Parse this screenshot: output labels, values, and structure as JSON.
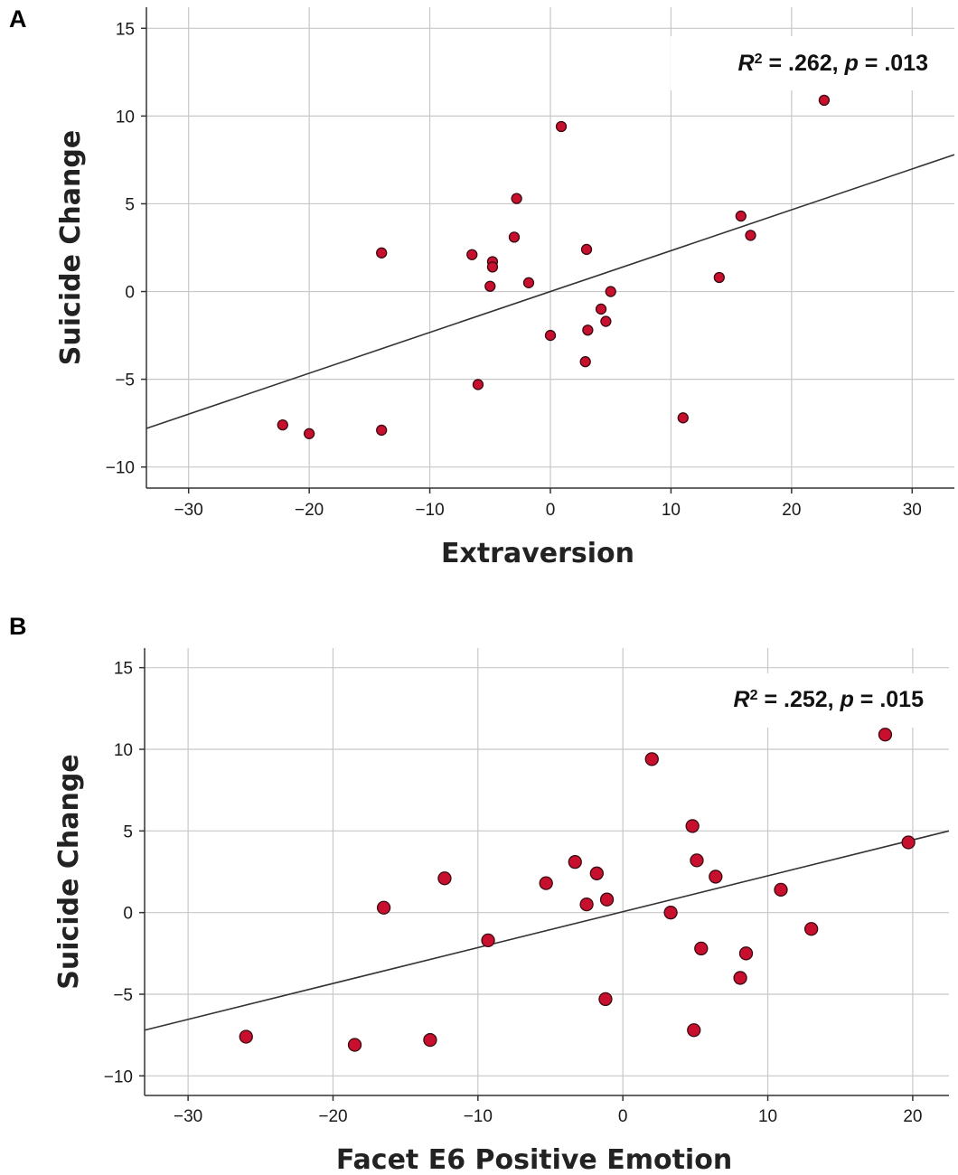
{
  "chart_data": [
    {
      "panel": "A",
      "type": "scatter",
      "title": "",
      "xlabel": "Extraversion",
      "ylabel": "Suicide Change",
      "xlim": [
        -33.5,
        33.5
      ],
      "ylim": [
        -11.2,
        16.2
      ],
      "xticks": [
        -30,
        -20,
        -10,
        0,
        10,
        20,
        30
      ],
      "yticks": [
        15,
        10,
        5,
        0,
        -5,
        -10
      ],
      "grid": true,
      "annotation": {
        "r_label": "R",
        "sup": "2",
        "mid": " = .262, ",
        "p_label": "p",
        "end": " = .013"
      },
      "fit_line": {
        "x1": -33.5,
        "y1": -7.8,
        "x2": 33.5,
        "y2": 7.8
      },
      "points": [
        {
          "x": -22.2,
          "y": -7.6
        },
        {
          "x": -20.0,
          "y": -8.1
        },
        {
          "x": -14.0,
          "y": 2.2
        },
        {
          "x": -14.0,
          "y": -7.9
        },
        {
          "x": -6.5,
          "y": 2.1
        },
        {
          "x": -6.0,
          "y": -5.3
        },
        {
          "x": -4.8,
          "y": 1.7
        },
        {
          "x": -4.8,
          "y": 1.4
        },
        {
          "x": -5.0,
          "y": 0.3
        },
        {
          "x": -3.0,
          "y": 3.1
        },
        {
          "x": -2.8,
          "y": 5.3
        },
        {
          "x": -1.8,
          "y": 0.5
        },
        {
          "x": 0.0,
          "y": -2.5
        },
        {
          "x": 0.9,
          "y": 9.4
        },
        {
          "x": 3.0,
          "y": 2.4
        },
        {
          "x": 3.1,
          "y": -2.2
        },
        {
          "x": 2.9,
          "y": -4.0
        },
        {
          "x": 4.2,
          "y": -1.0
        },
        {
          "x": 4.6,
          "y": -1.7
        },
        {
          "x": 5.0,
          "y": 0.0
        },
        {
          "x": 11.0,
          "y": -7.2
        },
        {
          "x": 14.0,
          "y": 0.8
        },
        {
          "x": 15.8,
          "y": 4.3
        },
        {
          "x": 16.6,
          "y": 3.2
        },
        {
          "x": 22.7,
          "y": 10.9
        }
      ]
    },
    {
      "panel": "B",
      "type": "scatter",
      "title": "",
      "xlabel": "Facet E6 Positive Emotion",
      "ylabel": "Suicide Change",
      "xlim": [
        -33.0,
        22.5
      ],
      "ylim": [
        -11.2,
        16.2
      ],
      "xticks": [
        -30,
        -20,
        -10,
        0,
        10,
        20
      ],
      "yticks": [
        15,
        10,
        5,
        0,
        -5,
        -10
      ],
      "grid": true,
      "annotation": {
        "r_label": "R",
        "sup": "2",
        "mid": " = .252, ",
        "p_label": "p",
        "end": " = .015"
      },
      "fit_line": {
        "x1": -33.0,
        "y1": -7.2,
        "x2": 22.5,
        "y2": 5.0
      },
      "points": [
        {
          "x": -26.0,
          "y": -7.6
        },
        {
          "x": -18.5,
          "y": -8.1
        },
        {
          "x": -16.5,
          "y": 0.3
        },
        {
          "x": -13.3,
          "y": -7.8
        },
        {
          "x": -12.3,
          "y": 2.1
        },
        {
          "x": -9.3,
          "y": -1.7
        },
        {
          "x": -5.3,
          "y": 1.8
        },
        {
          "x": -3.3,
          "y": 3.1
        },
        {
          "x": -2.5,
          "y": 0.5
        },
        {
          "x": -1.8,
          "y": 2.4
        },
        {
          "x": -1.1,
          "y": 0.8
        },
        {
          "x": -1.2,
          "y": -5.3
        },
        {
          "x": 2.0,
          "y": 9.4
        },
        {
          "x": 3.3,
          "y": 0.0
        },
        {
          "x": 4.8,
          "y": 5.3
        },
        {
          "x": 5.1,
          "y": 3.2
        },
        {
          "x": 4.9,
          "y": -7.2
        },
        {
          "x": 5.4,
          "y": -2.2
        },
        {
          "x": 6.4,
          "y": 2.2
        },
        {
          "x": 8.1,
          "y": -4.0
        },
        {
          "x": 8.5,
          "y": -2.5
        },
        {
          "x": 10.9,
          "y": 1.4
        },
        {
          "x": 13.0,
          "y": -1.0
        },
        {
          "x": 18.1,
          "y": 10.9
        },
        {
          "x": 19.7,
          "y": 4.3
        }
      ]
    }
  ],
  "colors": {
    "point_fill": "#c8102e",
    "point_stroke": "#3a0a12",
    "grid": "#c8c8c8",
    "axis": "#333333",
    "fit_line": "#333333"
  }
}
